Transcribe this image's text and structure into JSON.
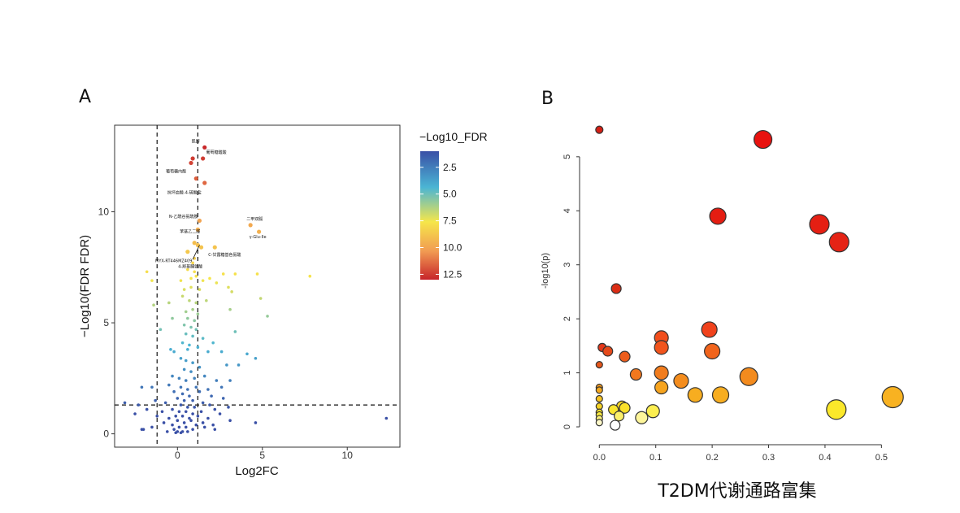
{
  "chart_data": [
    {
      "panel": "A",
      "type": "scatter",
      "title": "",
      "xlabel": "Log2FC",
      "ylabel": "−Log10(FDR FDR)",
      "xlim": [
        -3.7,
        13.1
      ],
      "ylim": [
        -0.6,
        13.9
      ],
      "x_ticks": [
        0,
        5,
        10
      ],
      "y_ticks": [
        0,
        5,
        10
      ],
      "thresholds": {
        "x": [
          -1.2,
          1.2
        ],
        "y": 1.3
      },
      "legend": {
        "title": "−Log10_FDR",
        "position": "right",
        "ticks": [
          2.5,
          5.0,
          7.5,
          10.0,
          12.5
        ],
        "tick_labels": [
          "2.5",
          "5.0",
          "7.5",
          "10.0",
          "12.5"
        ],
        "range": [
          1.0,
          13.0
        ],
        "colors": [
          "#3a50a6",
          "#4bb5d4",
          "#f6e64a",
          "#f19a52",
          "#c7242a"
        ]
      },
      "annotated_points": [
        {
          "label": "肌醇",
          "x": 1.6,
          "y": 12.9
        },
        {
          "label": "葡萄糖醛酸",
          "x": 1.5,
          "y": 12.4
        },
        {
          "label": "葡萄糖内酯",
          "x": 0.9,
          "y": 12.2
        },
        {
          "label": "抗坏血酸-4-硫酸盐",
          "x": 1.6,
          "y": 11.2
        },
        {
          "label": "N-乙酰谷氨酰胺",
          "x": 1.3,
          "y": 9.5
        },
        {
          "label": "二甲双胍",
          "x": 4.4,
          "y": 9.4
        },
        {
          "label": "γ-Glu-Ile",
          "x": 4.8,
          "y": 9.1
        },
        {
          "label": "苯基乙二醛",
          "x": 1.1,
          "y": 9.2
        },
        {
          "label": "C-甘露糖基色氨酸",
          "x": 2.2,
          "y": 8.3
        },
        {
          "label": "MYX-RT446MZ409",
          "x": 0.8,
          "y": 8.1
        },
        {
          "label": "4-羟基脯氨酸",
          "x": 1.0,
          "y": 7.8
        }
      ],
      "points": [
        [
          1.6,
          12.9
        ],
        [
          1.5,
          12.4
        ],
        [
          0.9,
          12.4
        ],
        [
          0.8,
          12.2
        ],
        [
          1.1,
          11.5
        ],
        [
          1.6,
          11.3
        ],
        [
          1.3,
          9.6
        ],
        [
          1.2,
          9.2
        ],
        [
          4.3,
          9.4
        ],
        [
          4.8,
          9.1
        ],
        [
          2.2,
          8.4
        ],
        [
          1.0,
          8.6
        ],
        [
          1.2,
          8.5
        ],
        [
          0.6,
          8.2
        ],
        [
          1.4,
          8.4
        ],
        [
          1.0,
          7.9
        ],
        [
          0.9,
          7.7
        ],
        [
          -1.8,
          7.3
        ],
        [
          -1.5,
          6.9
        ],
        [
          0.2,
          6.9
        ],
        [
          0.8,
          7.0
        ],
        [
          1.1,
          7.1
        ],
        [
          1.5,
          6.9
        ],
        [
          1.9,
          7.0
        ],
        [
          2.3,
          6.8
        ],
        [
          2.7,
          7.2
        ],
        [
          3.4,
          7.2
        ],
        [
          4.7,
          7.2
        ],
        [
          7.8,
          7.1
        ],
        [
          0.6,
          7.4
        ],
        [
          1.0,
          7.3
        ],
        [
          0.4,
          6.5
        ],
        [
          0.8,
          6.6
        ],
        [
          1.3,
          6.5
        ],
        [
          3.0,
          6.6
        ],
        [
          3.2,
          6.4
        ],
        [
          4.9,
          6.1
        ],
        [
          0.3,
          6.2
        ],
        [
          0.7,
          6.0
        ],
        [
          1.1,
          5.9
        ],
        [
          1.7,
          6.0
        ],
        [
          3.1,
          5.6
        ],
        [
          5.3,
          5.3
        ],
        [
          0.5,
          5.5
        ],
        [
          0.9,
          5.6
        ],
        [
          1.2,
          5.4
        ],
        [
          0.6,
          5.2
        ],
        [
          1.0,
          5.1
        ],
        [
          -1.4,
          5.8
        ],
        [
          -0.5,
          5.9
        ],
        [
          -0.3,
          5.2
        ],
        [
          0.4,
          4.9
        ],
        [
          0.8,
          4.8
        ],
        [
          1.1,
          4.7
        ],
        [
          -1.0,
          4.7
        ],
        [
          3.4,
          4.6
        ],
        [
          0.5,
          4.5
        ],
        [
          0.9,
          4.4
        ],
        [
          1.5,
          4.3
        ],
        [
          2.1,
          4.1
        ],
        [
          0.3,
          4.1
        ],
        [
          0.7,
          4.0
        ],
        [
          -0.4,
          3.8
        ],
        [
          -0.2,
          3.7
        ],
        [
          0.6,
          3.8
        ],
        [
          1.2,
          3.9
        ],
        [
          1.8,
          3.7
        ],
        [
          2.6,
          3.7
        ],
        [
          4.1,
          3.6
        ],
        [
          4.6,
          3.4
        ],
        [
          0.2,
          3.4
        ],
        [
          0.5,
          3.3
        ],
        [
          0.9,
          3.2
        ],
        [
          1.3,
          3.0
        ],
        [
          2.9,
          3.1
        ],
        [
          3.6,
          3.1
        ],
        [
          0.4,
          2.9
        ],
        [
          0.8,
          2.8
        ],
        [
          -0.3,
          2.6
        ],
        [
          0.1,
          2.5
        ],
        [
          0.5,
          2.4
        ],
        [
          1.0,
          2.5
        ],
        [
          1.6,
          2.6
        ],
        [
          2.3,
          2.4
        ],
        [
          3.1,
          2.4
        ],
        [
          -0.5,
          2.2
        ],
        [
          0.2,
          2.1
        ],
        [
          0.6,
          2.0
        ],
        [
          1.1,
          2.1
        ],
        [
          1.8,
          2.0
        ],
        [
          2.6,
          2.1
        ],
        [
          -1.5,
          2.1
        ],
        [
          -2.1,
          2.1
        ],
        [
          -0.2,
          1.9
        ],
        [
          0.3,
          1.8
        ],
        [
          0.7,
          1.7
        ],
        [
          1.3,
          1.9
        ],
        [
          2.0,
          1.7
        ],
        [
          0.0,
          1.6
        ],
        [
          0.4,
          1.5
        ],
        [
          0.9,
          1.5
        ],
        [
          1.5,
          1.4
        ],
        [
          2.7,
          1.6
        ],
        [
          -0.7,
          1.4
        ],
        [
          -1.3,
          1.5
        ],
        [
          -2.3,
          1.3
        ],
        [
          -3.1,
          1.4
        ],
        [
          0.2,
          1.3
        ],
        [
          0.6,
          1.2
        ],
        [
          1.0,
          1.2
        ],
        [
          1.9,
          1.3
        ],
        [
          -0.3,
          1.1
        ],
        [
          0.1,
          1.0
        ],
        [
          0.5,
          1.0
        ],
        [
          0.9,
          0.9
        ],
        [
          1.4,
          1.0
        ],
        [
          2.2,
          1.1
        ],
        [
          3.0,
          1.2
        ],
        [
          -0.9,
          1.0
        ],
        [
          -1.8,
          1.1
        ],
        [
          -0.1,
          0.8
        ],
        [
          0.3,
          0.8
        ],
        [
          0.7,
          0.7
        ],
        [
          1.2,
          0.8
        ],
        [
          1.8,
          0.7
        ],
        [
          2.5,
          0.9
        ],
        [
          -0.5,
          0.7
        ],
        [
          -1.2,
          0.8
        ],
        [
          -2.5,
          0.9
        ],
        [
          0.0,
          0.6
        ],
        [
          0.4,
          0.5
        ],
        [
          0.8,
          0.6
        ],
        [
          1.5,
          0.5
        ],
        [
          2.1,
          0.4
        ],
        [
          3.1,
          0.6
        ],
        [
          4.6,
          0.5
        ],
        [
          12.3,
          0.7
        ],
        [
          -0.3,
          0.4
        ],
        [
          -0.8,
          0.5
        ],
        [
          0.1,
          0.3
        ],
        [
          0.5,
          0.3
        ],
        [
          0.9,
          0.2
        ],
        [
          1.6,
          0.3
        ],
        [
          -1.5,
          0.3
        ],
        [
          -2.0,
          0.2
        ],
        [
          -2.1,
          0.2
        ],
        [
          0.0,
          0.1
        ],
        [
          0.3,
          0.1
        ],
        [
          0.6,
          0.1
        ],
        [
          -0.2,
          0.2
        ],
        [
          -0.6,
          0.1
        ],
        [
          1.1,
          0.4
        ],
        [
          2.2,
          0.2
        ],
        [
          0.2,
          0.05
        ],
        [
          -0.1,
          0.05
        ]
      ]
    },
    {
      "panel": "B",
      "type": "scatter",
      "title": "",
      "xlabel": "T2DM代谢通路富集",
      "ylabel": "-log10(p)",
      "xlim": [
        -0.035,
        0.56
      ],
      "ylim": [
        -0.15,
        5.75
      ],
      "x_ticks": [
        0.0,
        0.1,
        0.2,
        0.3,
        0.4,
        0.5
      ],
      "x_tick_labels": [
        "0.0",
        "0.1",
        "0.2",
        "0.3",
        "0.4",
        "0.5"
      ],
      "y_ticks": [
        0,
        1,
        2,
        3,
        4,
        5
      ],
      "y_tick_labels": [
        "0",
        "1",
        "2",
        "3",
        "4",
        "5"
      ],
      "points": [
        {
          "x": 0.0,
          "y": 5.5,
          "size": 4.5,
          "color": "#d41f15"
        },
        {
          "x": 0.29,
          "y": 5.32,
          "size": 11,
          "color": "#e8120f"
        },
        {
          "x": 0.21,
          "y": 3.9,
          "size": 10,
          "color": "#e41d12"
        },
        {
          "x": 0.39,
          "y": 3.75,
          "size": 12,
          "color": "#e51f13"
        },
        {
          "x": 0.425,
          "y": 3.42,
          "size": 12,
          "color": "#e52315"
        },
        {
          "x": 0.03,
          "y": 2.56,
          "size": 6,
          "color": "#db2d15"
        },
        {
          "x": 0.195,
          "y": 1.8,
          "size": 9.5,
          "color": "#f0421c"
        },
        {
          "x": 0.11,
          "y": 1.65,
          "size": 8.5,
          "color": "#f14e1c"
        },
        {
          "x": 0.11,
          "y": 1.47,
          "size": 8.5,
          "color": "#f1541c"
        },
        {
          "x": 0.005,
          "y": 1.47,
          "size": 5,
          "color": "#e4381a"
        },
        {
          "x": 0.015,
          "y": 1.4,
          "size": 6,
          "color": "#e54a1b"
        },
        {
          "x": 0.2,
          "y": 1.4,
          "size": 9.5,
          "color": "#f1641c"
        },
        {
          "x": 0.045,
          "y": 1.3,
          "size": 6.5,
          "color": "#ec5d1c"
        },
        {
          "x": 0.0,
          "y": 1.15,
          "size": 4,
          "color": "#e5561b"
        },
        {
          "x": 0.11,
          "y": 1.0,
          "size": 8.5,
          "color": "#f17c1d"
        },
        {
          "x": 0.065,
          "y": 0.97,
          "size": 7,
          "color": "#f2781e"
        },
        {
          "x": 0.265,
          "y": 0.93,
          "size": 11,
          "color": "#f38b1e"
        },
        {
          "x": 0.145,
          "y": 0.85,
          "size": 9,
          "color": "#f48d1e"
        },
        {
          "x": 0.11,
          "y": 0.73,
          "size": 8,
          "color": "#f6a41f"
        },
        {
          "x": 0.0,
          "y": 0.73,
          "size": 4,
          "color": "#f29a1f"
        },
        {
          "x": 0.0,
          "y": 0.68,
          "size": 4,
          "color": "#f4a81f"
        },
        {
          "x": 0.17,
          "y": 0.59,
          "size": 9,
          "color": "#f7ad20"
        },
        {
          "x": 0.215,
          "y": 0.59,
          "size": 10,
          "color": "#f7ad20"
        },
        {
          "x": 0.52,
          "y": 0.55,
          "size": 13,
          "color": "#f8b221"
        },
        {
          "x": 0.0,
          "y": 0.52,
          "size": 4,
          "color": "#f6c322"
        },
        {
          "x": 0.04,
          "y": 0.38,
          "size": 6.5,
          "color": "#f8d727"
        },
        {
          "x": 0.0,
          "y": 0.38,
          "size": 4,
          "color": "#f4d226"
        },
        {
          "x": 0.045,
          "y": 0.35,
          "size": 6.5,
          "color": "#fae02a"
        },
        {
          "x": 0.025,
          "y": 0.32,
          "size": 6,
          "color": "#fbe62e"
        },
        {
          "x": 0.42,
          "y": 0.32,
          "size": 12,
          "color": "#fbe82a"
        },
        {
          "x": 0.095,
          "y": 0.29,
          "size": 8,
          "color": "#fcee50"
        },
        {
          "x": 0.0,
          "y": 0.27,
          "size": 4,
          "color": "#f8e22a"
        },
        {
          "x": 0.0,
          "y": 0.22,
          "size": 4,
          "color": "#f9ea3e"
        },
        {
          "x": 0.035,
          "y": 0.2,
          "size": 6,
          "color": "#fcf06a"
        },
        {
          "x": 0.075,
          "y": 0.17,
          "size": 7.5,
          "color": "#fdf59a"
        },
        {
          "x": 0.0,
          "y": 0.15,
          "size": 4,
          "color": "#fcf27c"
        },
        {
          "x": 0.0,
          "y": 0.08,
          "size": 4,
          "color": "#fdf8c8"
        },
        {
          "x": 0.028,
          "y": 0.03,
          "size": 6,
          "color": "#ffffff"
        }
      ]
    }
  ],
  "panel_labels": {
    "a": "A",
    "b": "B"
  }
}
